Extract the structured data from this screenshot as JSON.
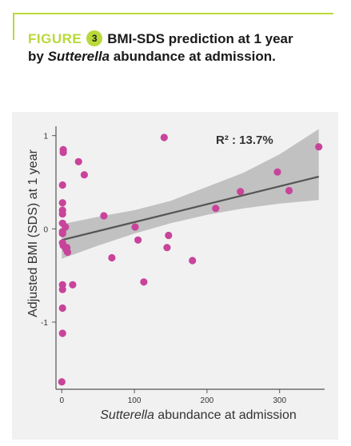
{
  "figure": {
    "label": "FIGURE",
    "number": "3",
    "title_line1": "BMI-SDS prediction at 1 year",
    "title_line2_prefix": "by ",
    "title_line2_italic": "Sutterella",
    "title_line2_suffix": " abundance at admission.",
    "accent_color": "#b9d93a"
  },
  "chart_data": {
    "type": "scatter",
    "title": "",
    "annotation": "R² : 13.7%",
    "ylabel": "Adjusted BMI (SDS) at 1 year",
    "xlabel_italic": "Sutterella",
    "xlabel_rest": " abundance at admission",
    "xlim": [
      -8,
      362
    ],
    "ylim": [
      -1.72,
      1.1
    ],
    "x_ticks": [
      0,
      100,
      200,
      300
    ],
    "y_ticks": [
      1,
      0,
      -1
    ],
    "grid": false,
    "point_color": "#c8449a",
    "trend_color": "#555555",
    "band_color": "#b9b9b9",
    "points": [
      {
        "x": 2,
        "y": 0.85
      },
      {
        "x": 2,
        "y": 0.82
      },
      {
        "x": 1,
        "y": 0.47
      },
      {
        "x": 1,
        "y": 0.28
      },
      {
        "x": 1,
        "y": 0.2
      },
      {
        "x": 1,
        "y": 0.16
      },
      {
        "x": 1,
        "y": 0.06
      },
      {
        "x": 1,
        "y": -0.05
      },
      {
        "x": 1,
        "y": -0.03
      },
      {
        "x": 1,
        "y": -0.15
      },
      {
        "x": 2,
        "y": -0.18
      },
      {
        "x": 5,
        "y": 0.02
      },
      {
        "x": 7,
        "y": -0.2
      },
      {
        "x": 8,
        "y": -0.25
      },
      {
        "x": 6,
        "y": -0.22
      },
      {
        "x": 1,
        "y": -0.6
      },
      {
        "x": 1,
        "y": -0.65
      },
      {
        "x": 1,
        "y": -0.85
      },
      {
        "x": 1,
        "y": -1.12
      },
      {
        "x": 0,
        "y": -1.64
      },
      {
        "x": 15,
        "y": -0.6
      },
      {
        "x": 23,
        "y": 0.72
      },
      {
        "x": 31,
        "y": 0.58
      },
      {
        "x": 58,
        "y": 0.14
      },
      {
        "x": 69,
        "y": -0.31
      },
      {
        "x": 101,
        "y": 0.02
      },
      {
        "x": 105,
        "y": -0.12
      },
      {
        "x": 113,
        "y": -0.57
      },
      {
        "x": 141,
        "y": 0.98
      },
      {
        "x": 145,
        "y": -0.2
      },
      {
        "x": 147,
        "y": -0.07
      },
      {
        "x": 180,
        "y": -0.34
      },
      {
        "x": 212,
        "y": 0.22
      },
      {
        "x": 246,
        "y": 0.4
      },
      {
        "x": 297,
        "y": 0.61
      },
      {
        "x": 313,
        "y": 0.41
      },
      {
        "x": 354,
        "y": 0.88
      }
    ],
    "trend": {
      "x": [
        0,
        354
      ],
      "y": [
        -0.12,
        0.56
      ]
    },
    "confidence_band": {
      "x": [
        0,
        50,
        100,
        150,
        200,
        250,
        300,
        354
      ],
      "upper": [
        0.05,
        0.13,
        0.2,
        0.3,
        0.45,
        0.6,
        0.8,
        1.07
      ],
      "lower": [
        -0.32,
        -0.18,
        -0.05,
        0.06,
        0.15,
        0.22,
        0.27,
        0.31
      ]
    }
  }
}
